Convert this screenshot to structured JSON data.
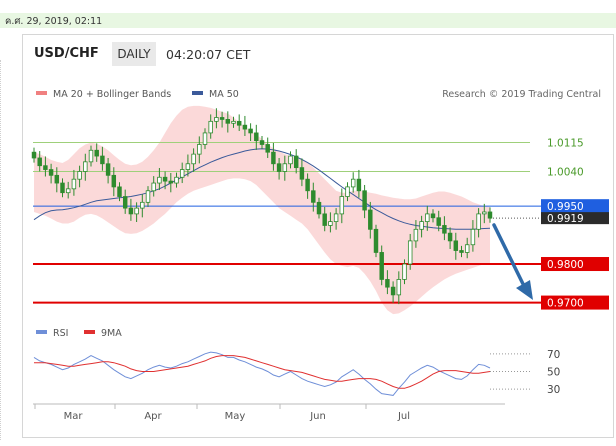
{
  "date_stamp": "ค.ศ. 29, 2019, 02:11",
  "header": {
    "symbol": "USD/CHF",
    "timeframe": "DAILY",
    "time": "04:20:07 CET"
  },
  "legend": {
    "ma20": "MA 20 + Bollinger Bands",
    "ma50": "MA 50",
    "credit": "Research © 2019 Trading Central"
  },
  "colors": {
    "bollinger": "#f5b8b8",
    "ma50": "#3b5a9a",
    "candle": "#2e8b2e",
    "support": "#e00000",
    "pivot": "#1f5fe0",
    "resistance": "#9fd07a",
    "rsi": "#6f8fd8",
    "rsi_ma": "#e03030"
  },
  "chart_data": [
    {
      "type": "candlestick",
      "x_labels": [
        "Mar",
        "Apr",
        "May",
        "Jun",
        "Jul"
      ],
      "levels": [
        {
          "label": "1.0115",
          "value": 1.0115,
          "kind": "resistance"
        },
        {
          "label": "1.0040",
          "value": 1.004,
          "kind": "resistance"
        },
        {
          "label": "0.9950",
          "value": 0.995,
          "kind": "pivot"
        },
        {
          "label": "0.9919",
          "value": 0.9919,
          "kind": "last"
        },
        {
          "label": "0.9800",
          "value": 0.98,
          "kind": "support"
        },
        {
          "label": "0.9700",
          "value": 0.97,
          "kind": "support"
        }
      ],
      "close": [
        1.0075,
        1.0055,
        1.0045,
        1.003,
        1.001,
        0.9985,
        0.9995,
        1.002,
        1.004,
        1.0065,
        1.0095,
        1.008,
        1.006,
        1.003,
        1.0,
        0.9975,
        0.9945,
        0.993,
        0.9945,
        0.996,
        0.999,
        1.001,
        1.0025,
        1.0015,
        1.001,
        1.0025,
        1.0045,
        1.006,
        1.0085,
        1.011,
        1.014,
        1.017,
        1.018,
        1.0175,
        1.0165,
        1.017,
        1.016,
        1.015,
        1.014,
        1.012,
        1.011,
        1.009,
        1.006,
        1.004,
        1.006,
        1.008,
        1.005,
        1.002,
        0.999,
        0.996,
        0.993,
        0.99,
        0.991,
        0.993,
        0.9975,
        1.0,
        1.002,
        0.999,
        0.994,
        0.989,
        0.983,
        0.976,
        0.974,
        0.972,
        0.976,
        0.98,
        0.986,
        0.989,
        0.991,
        0.993,
        0.992,
        0.99,
        0.988,
        0.986,
        0.9835,
        0.983,
        0.985,
        0.989,
        0.993,
        0.9935,
        0.9919
      ],
      "ma50": [
        0.9915,
        0.9925,
        0.9933,
        0.9938,
        0.994,
        0.9941,
        0.9943,
        0.9946,
        0.995,
        0.9955,
        0.996,
        0.9964,
        0.9966,
        0.9968,
        0.997,
        0.9972,
        0.9973,
        0.9975,
        0.9978,
        0.9981,
        0.9985,
        0.999,
        0.9995,
        1.0002,
        1.001,
        1.0018,
        1.0026,
        1.0034,
        1.0042,
        1.005,
        1.0057,
        1.0064,
        1.007,
        1.0076,
        1.0081,
        1.0085,
        1.0089,
        1.0093,
        1.0096,
        1.0098,
        1.0099,
        1.0098,
        1.0096,
        1.0093,
        1.0089,
        1.0084,
        1.0078,
        1.0071,
        1.0063,
        1.0054,
        1.0044,
        1.0033,
        1.0022,
        1.0011,
        1.0,
        0.999,
        0.998,
        0.997,
        0.996,
        0.995,
        0.9941,
        0.9933,
        0.9925,
        0.9918,
        0.9912,
        0.9907,
        0.9903,
        0.99,
        0.9898,
        0.9896,
        0.9894,
        0.9893,
        0.9892,
        0.9891,
        0.989,
        0.989,
        0.989,
        0.989,
        0.9891,
        0.9892,
        0.9893
      ],
      "bb_upper": [
        1.009,
        1.0085,
        1.0078,
        1.007,
        1.0065,
        1.0062,
        1.007,
        1.0085,
        1.01,
        1.011,
        1.0115,
        1.0112,
        1.0105,
        1.0095,
        1.0082,
        1.007,
        1.006,
        1.0056,
        1.0058,
        1.0065,
        1.0078,
        1.0095,
        1.0115,
        1.014,
        1.0165,
        1.0185,
        1.02,
        1.0208,
        1.021,
        1.021,
        1.0208,
        1.0205,
        1.02,
        1.0195,
        1.019,
        1.018,
        1.0168,
        1.0155,
        1.0145,
        1.0135,
        1.0125,
        1.011,
        1.01,
        1.0092,
        1.0085,
        1.008,
        1.0075,
        1.007,
        1.0062,
        1.005,
        1.0035,
        1.002,
        1.0005,
        0.999,
        0.9985,
        0.9985,
        0.999,
        0.999,
        0.9988,
        0.9985,
        0.9982,
        0.9978,
        0.9975,
        0.9972,
        0.997,
        0.9968,
        0.9968,
        0.997,
        0.9975,
        0.998,
        0.9985,
        0.9988,
        0.9988,
        0.9985,
        0.998,
        0.9975,
        0.9968,
        0.996,
        0.9955,
        0.995,
        0.9948
      ],
      "bb_lower": [
        0.9935,
        0.993,
        0.9925,
        0.9918,
        0.991,
        0.9905,
        0.9905,
        0.991,
        0.992,
        0.9928,
        0.993,
        0.9926,
        0.9918,
        0.9908,
        0.9898,
        0.9888,
        0.988,
        0.9878,
        0.988,
        0.9886,
        0.9895,
        0.9905,
        0.9918,
        0.993,
        0.9945,
        0.996,
        0.9972,
        0.9982,
        0.999,
        0.9995,
        1.0,
        1.0005,
        1.001,
        1.0015,
        1.002,
        1.0022,
        1.0022,
        1.002,
        1.0015,
        1.0005,
        0.999,
        0.9975,
        0.996,
        0.9945,
        0.9935,
        0.9925,
        0.9915,
        0.9905,
        0.989,
        0.987,
        0.985,
        0.983,
        0.9812,
        0.98,
        0.9795,
        0.9792,
        0.9795,
        0.979,
        0.9775,
        0.9755,
        0.973,
        0.97,
        0.968,
        0.967,
        0.9672,
        0.968,
        0.969,
        0.9702,
        0.9715,
        0.9728,
        0.974,
        0.975,
        0.976,
        0.9768,
        0.9775,
        0.978,
        0.9785,
        0.979,
        0.9795,
        0.98,
        0.98
      ],
      "ylim": [
        0.966,
        1.0215
      ]
    },
    {
      "type": "line",
      "series": [
        {
          "name": "RSI",
          "values": [
            66,
            62,
            60,
            58,
            55,
            52,
            54,
            58,
            61,
            64,
            68,
            65,
            62,
            57,
            52,
            48,
            44,
            42,
            45,
            48,
            52,
            55,
            57,
            55,
            54,
            56,
            59,
            61,
            64,
            67,
            70,
            72,
            71,
            69,
            66,
            66,
            63,
            61,
            58,
            55,
            53,
            50,
            46,
            44,
            47,
            50,
            46,
            42,
            39,
            37,
            35,
            33,
            35,
            38,
            44,
            48,
            52,
            47,
            41,
            36,
            30,
            25,
            24,
            23,
            31,
            38,
            46,
            50,
            54,
            57,
            55,
            51,
            48,
            45,
            42,
            41,
            45,
            52,
            58,
            57,
            54
          ]
        },
        {
          "name": "9MA",
          "values": [
            60,
            60,
            60,
            59,
            58,
            57,
            56,
            56,
            57,
            58,
            59,
            60,
            61,
            61,
            60,
            58,
            56,
            53,
            51,
            50,
            50,
            50,
            51,
            52,
            53,
            54,
            55,
            56,
            58,
            60,
            62,
            65,
            67,
            68,
            68,
            68,
            67,
            66,
            64,
            62,
            60,
            58,
            56,
            54,
            52,
            51,
            50,
            49,
            47,
            45,
            43,
            41,
            40,
            39,
            39,
            40,
            41,
            42,
            42,
            42,
            41,
            39,
            36,
            33,
            31,
            31,
            33,
            36,
            39,
            43,
            47,
            50,
            51,
            51,
            51,
            50,
            49,
            48,
            48,
            49,
            50
          ]
        }
      ],
      "y_ticks": [
        70,
        50,
        30
      ],
      "ylim": [
        20,
        80
      ]
    }
  ]
}
